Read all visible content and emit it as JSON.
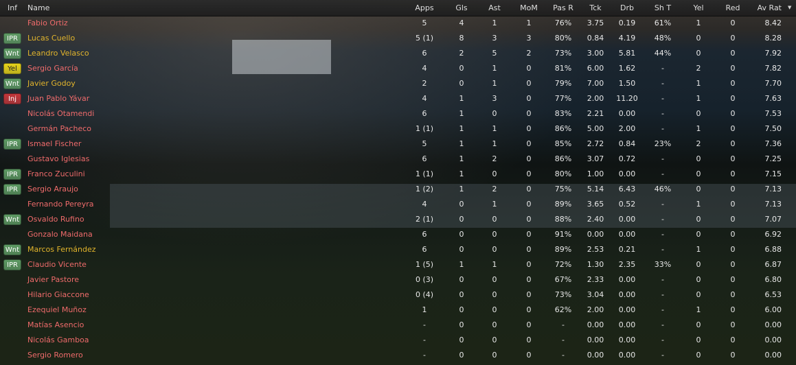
{
  "colors": {
    "name_red": "#ef6b6b",
    "name_orange": "#e3b52c",
    "IPR": "#5e9a64",
    "Wnt": "#5e9a64",
    "Yel": "#e6d31a",
    "Inj": "#c2363a"
  },
  "columns": [
    "Inf",
    "Name",
    "Apps",
    "Gls",
    "Ast",
    "MoM",
    "Pas R",
    "Tck",
    "Drb",
    "Sh T",
    "Yel",
    "Red",
    "Av Rat"
  ],
  "sort": {
    "column": "Av Rat",
    "direction": "descending",
    "icon": "sort-down-icon"
  },
  "players": [
    {
      "inf": "",
      "name": "Fabio Ortiz",
      "color": "red",
      "stats": [
        "5",
        "4",
        "1",
        "1",
        "76%",
        "3.75",
        "0.19",
        "61%",
        "1",
        "0",
        "8.42"
      ]
    },
    {
      "inf": "IPR",
      "name": "Lucas Cuello",
      "color": "orange",
      "stats": [
        "5 (1)",
        "8",
        "3",
        "3",
        "80%",
        "0.84",
        "4.19",
        "48%",
        "0",
        "0",
        "8.28"
      ]
    },
    {
      "inf": "Wnt",
      "name": "Leandro Velasco",
      "color": "orange",
      "stats": [
        "6",
        "2",
        "5",
        "2",
        "73%",
        "3.00",
        "5.81",
        "44%",
        "0",
        "0",
        "7.92"
      ]
    },
    {
      "inf": "Yel",
      "name": "Sergio García",
      "color": "red",
      "stats": [
        "4",
        "0",
        "1",
        "0",
        "81%",
        "6.00",
        "1.62",
        "-",
        "2",
        "0",
        "7.82"
      ]
    },
    {
      "inf": "Wnt",
      "name": "Javier Godoy",
      "color": "orange",
      "stats": [
        "2",
        "0",
        "1",
        "0",
        "79%",
        "7.00",
        "1.50",
        "-",
        "1",
        "0",
        "7.70"
      ]
    },
    {
      "inf": "Inj",
      "name": "Juan Pablo Yávar",
      "color": "red",
      "stats": [
        "4",
        "1",
        "3",
        "0",
        "77%",
        "2.00",
        "11.20",
        "-",
        "1",
        "0",
        "7.63"
      ]
    },
    {
      "inf": "",
      "name": "Nicolás Otamendi",
      "color": "red",
      "stats": [
        "6",
        "1",
        "0",
        "0",
        "83%",
        "2.21",
        "0.00",
        "-",
        "0",
        "0",
        "7.53"
      ]
    },
    {
      "inf": "",
      "name": "Germán Pacheco",
      "color": "red",
      "stats": [
        "1 (1)",
        "1",
        "1",
        "0",
        "86%",
        "5.00",
        "2.00",
        "-",
        "1",
        "0",
        "7.50"
      ]
    },
    {
      "inf": "IPR",
      "name": "Ismael Fischer",
      "color": "red",
      "stats": [
        "5",
        "1",
        "1",
        "0",
        "85%",
        "2.72",
        "0.84",
        "23%",
        "2",
        "0",
        "7.36"
      ]
    },
    {
      "inf": "",
      "name": "Gustavo Iglesias",
      "color": "red",
      "stats": [
        "6",
        "1",
        "2",
        "0",
        "86%",
        "3.07",
        "0.72",
        "-",
        "0",
        "0",
        "7.25"
      ]
    },
    {
      "inf": "IPR",
      "name": "Franco Zuculini",
      "color": "red",
      "stats": [
        "1 (1)",
        "1",
        "0",
        "0",
        "80%",
        "1.00",
        "0.00",
        "-",
        "0",
        "0",
        "7.15"
      ]
    },
    {
      "inf": "IPR",
      "name": "Sergio Araujo",
      "color": "red",
      "stats": [
        "1 (2)",
        "1",
        "2",
        "0",
        "75%",
        "5.14",
        "6.43",
        "46%",
        "0",
        "0",
        "7.13"
      ]
    },
    {
      "inf": "",
      "name": "Fernando Pereyra",
      "color": "red",
      "stats": [
        "4",
        "0",
        "1",
        "0",
        "89%",
        "3.65",
        "0.52",
        "-",
        "1",
        "0",
        "7.13"
      ]
    },
    {
      "inf": "Wnt",
      "name": "Osvaldo Rufino",
      "color": "red",
      "stats": [
        "2 (1)",
        "0",
        "0",
        "0",
        "88%",
        "2.40",
        "0.00",
        "-",
        "0",
        "0",
        "7.07"
      ]
    },
    {
      "inf": "",
      "name": "Gonzalo Maidana",
      "color": "red",
      "stats": [
        "6",
        "0",
        "0",
        "0",
        "91%",
        "0.00",
        "0.00",
        "-",
        "0",
        "0",
        "6.92"
      ]
    },
    {
      "inf": "Wnt",
      "name": "Marcos Fernández",
      "color": "orange",
      "stats": [
        "6",
        "0",
        "0",
        "0",
        "89%",
        "2.53",
        "0.21",
        "-",
        "1",
        "0",
        "6.88"
      ]
    },
    {
      "inf": "IPR",
      "name": "Claudio Vicente",
      "color": "red",
      "stats": [
        "1 (5)",
        "1",
        "1",
        "0",
        "72%",
        "1.30",
        "2.35",
        "33%",
        "0",
        "0",
        "6.87"
      ]
    },
    {
      "inf": "",
      "name": "Javier Pastore",
      "color": "red",
      "stats": [
        "0 (3)",
        "0",
        "0",
        "0",
        "67%",
        "2.33",
        "0.00",
        "-",
        "0",
        "0",
        "6.80"
      ]
    },
    {
      "inf": "",
      "name": "Hilario Giaccone",
      "color": "red",
      "stats": [
        "0 (4)",
        "0",
        "0",
        "0",
        "73%",
        "3.04",
        "0.00",
        "-",
        "0",
        "0",
        "6.53"
      ]
    },
    {
      "inf": "",
      "name": "Ezequiel Muñoz",
      "color": "red",
      "stats": [
        "1",
        "0",
        "0",
        "0",
        "62%",
        "2.00",
        "0.00",
        "-",
        "1",
        "0",
        "6.00"
      ]
    },
    {
      "inf": "",
      "name": "Matías Asencio",
      "color": "red",
      "stats": [
        "-",
        "0",
        "0",
        "0",
        "-",
        "0.00",
        "0.00",
        "-",
        "0",
        "0",
        "0.00"
      ]
    },
    {
      "inf": "",
      "name": "Nicolás Gamboa",
      "color": "red",
      "stats": [
        "-",
        "0",
        "0",
        "0",
        "-",
        "0.00",
        "0.00",
        "-",
        "0",
        "0",
        "0.00"
      ]
    },
    {
      "inf": "",
      "name": "Sergio Romero",
      "color": "red",
      "stats": [
        "-",
        "0",
        "0",
        "0",
        "-",
        "0.00",
        "0.00",
        "-",
        "0",
        "0",
        "0.00"
      ]
    }
  ]
}
